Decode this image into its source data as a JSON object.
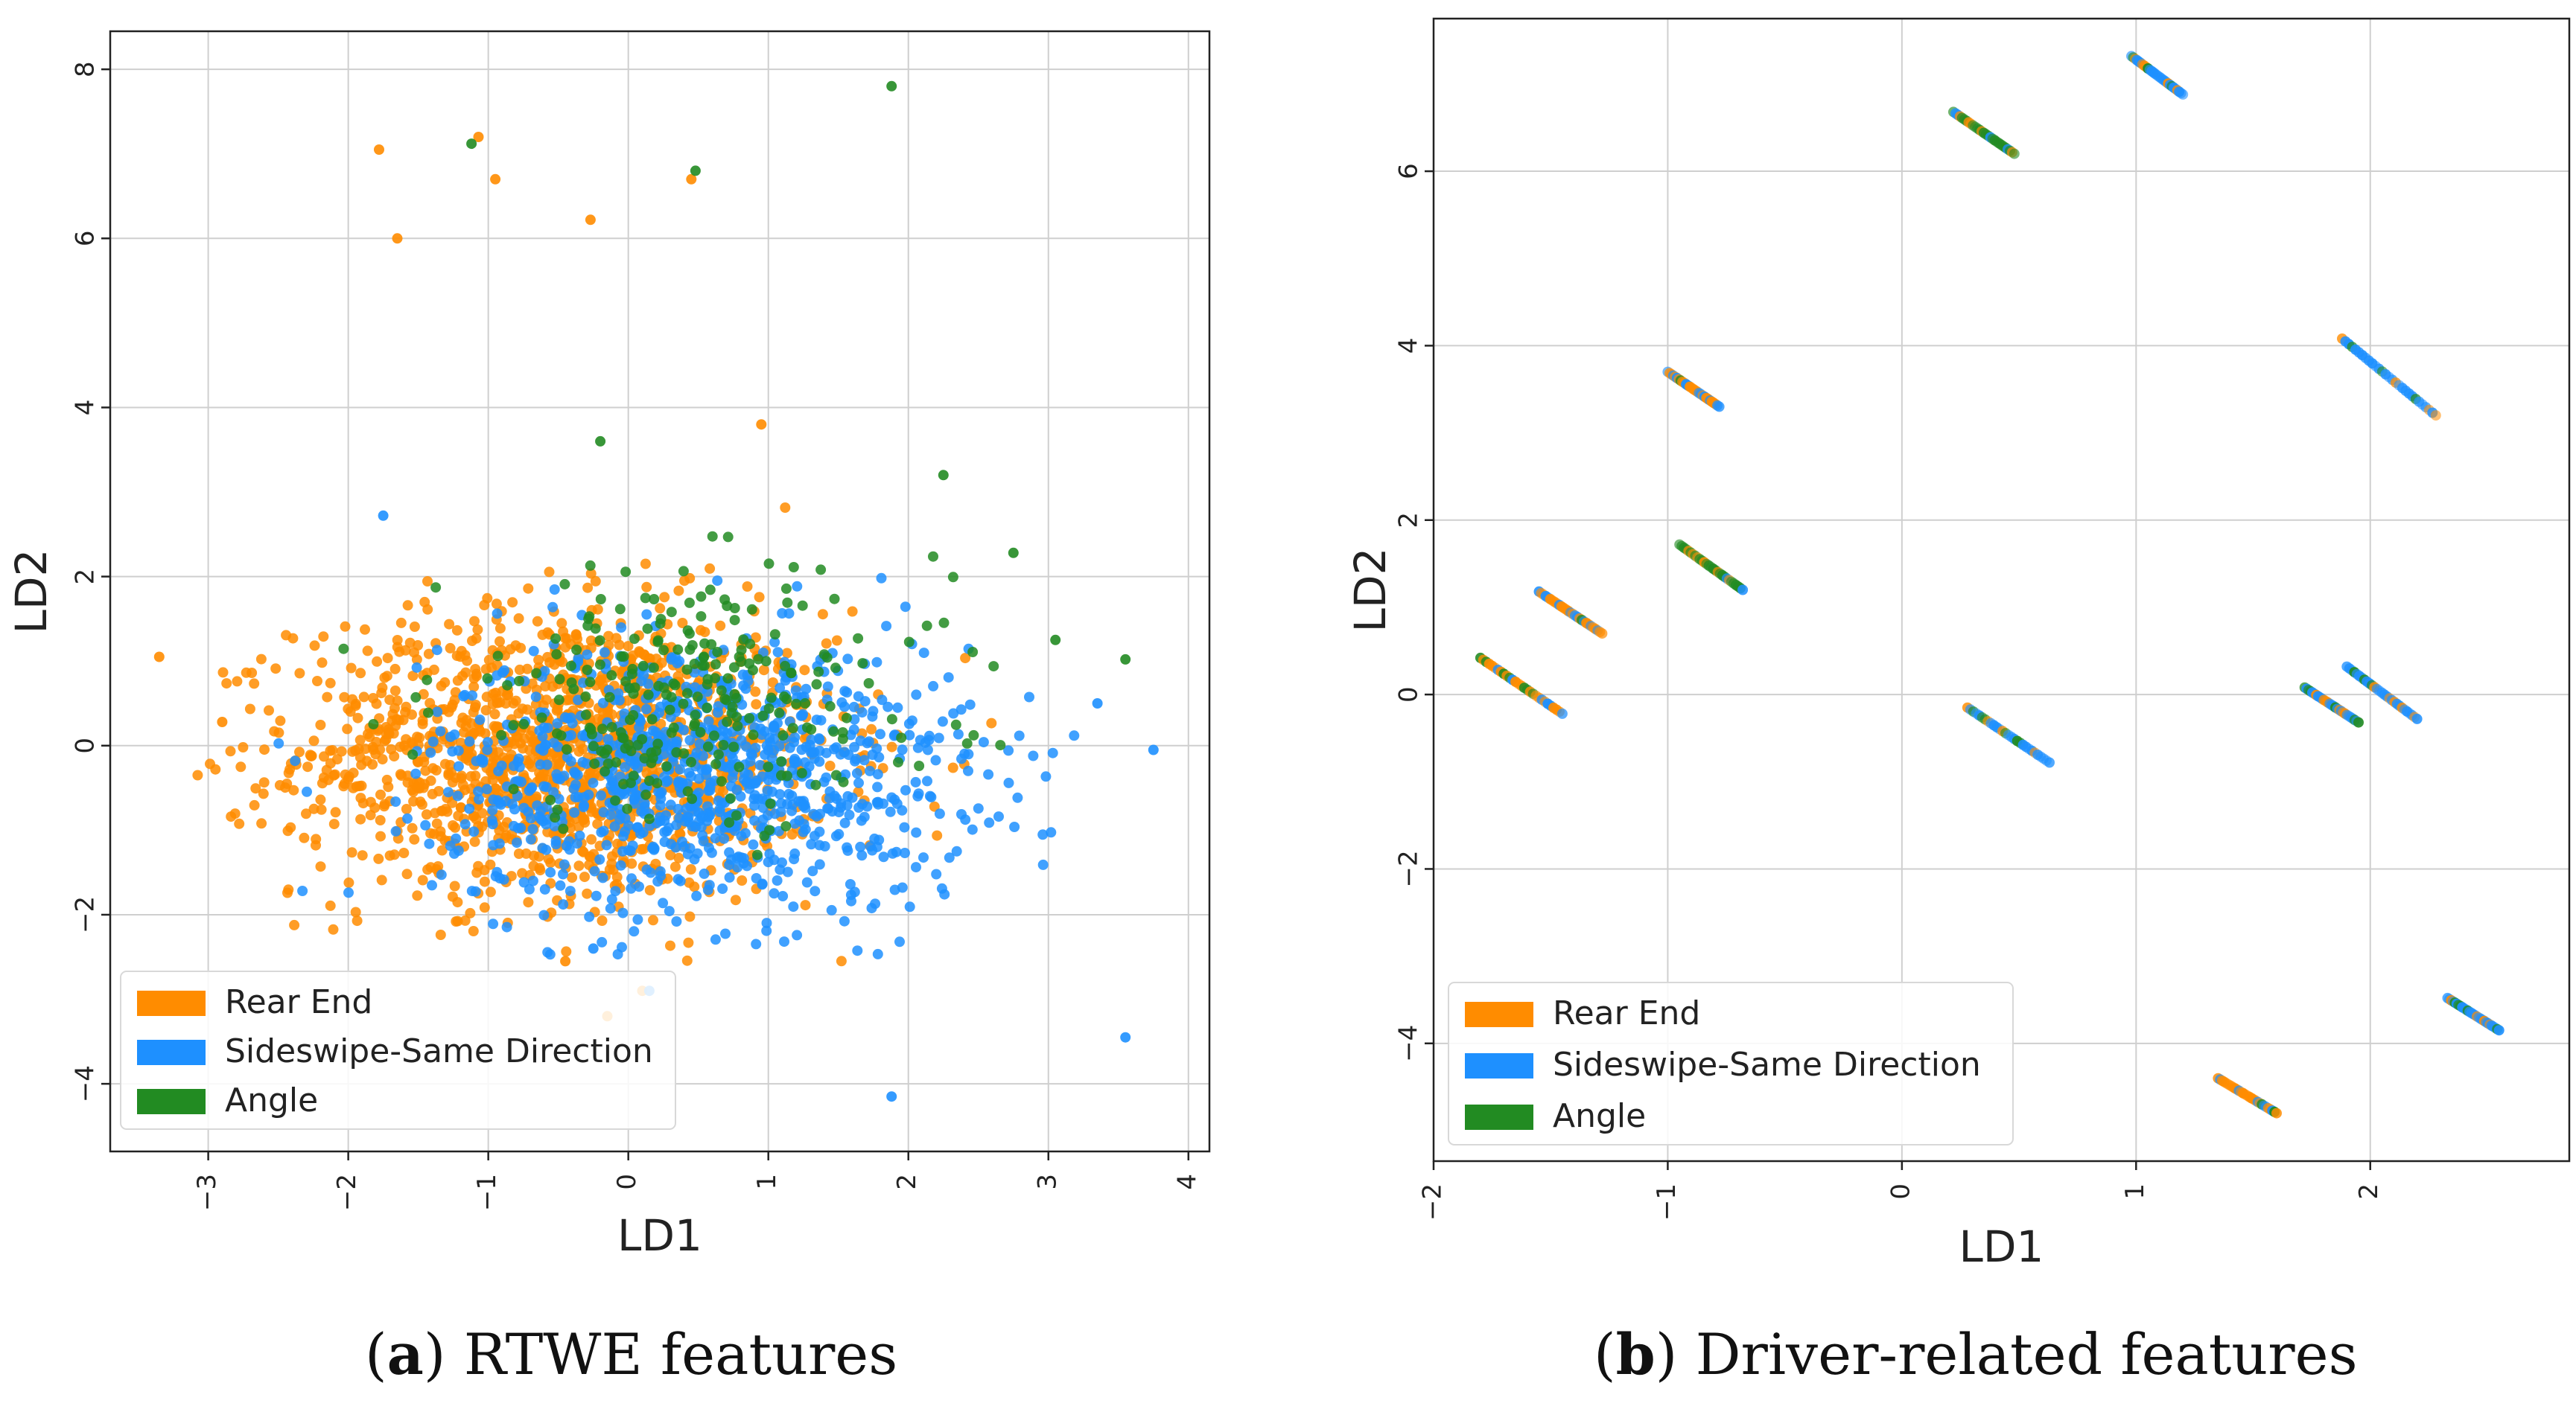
{
  "figure": {
    "panels": [
      {
        "id": "a",
        "caption_letter": "a",
        "caption_open": "(",
        "caption_close": ")",
        "caption_text": " RTWE features"
      },
      {
        "id": "b",
        "caption_letter": "b",
        "caption_open": "(",
        "caption_close": ")",
        "caption_text": " Driver-related features"
      }
    ]
  },
  "chart_data": [
    {
      "type": "scatter",
      "title": "",
      "xlabel": "LD1",
      "ylabel": "LD2",
      "xlim": [
        -3.7,
        4.15
      ],
      "ylim": [
        -4.8,
        8.45
      ],
      "xticks": [
        -3,
        -2,
        -1,
        0,
        1,
        2,
        3,
        4
      ],
      "yticks": [
        -4,
        -2,
        0,
        2,
        4,
        6,
        8
      ],
      "grid": true,
      "legend_position": "lower-left",
      "legend": [
        "Rear End",
        "Sideswipe-Same Direction",
        "Angle"
      ],
      "colors": {
        "Rear End": "#ff8c00",
        "Sideswipe-Same Direction": "#1e90ff",
        "Angle": "#228b22"
      },
      "cloud": {
        "description_only_for_generator": false,
        "series": [
          {
            "name": "Rear End",
            "count": 1500,
            "mean": [
              -0.45,
              -0.1
            ],
            "sd": [
              0.95,
              0.85
            ]
          },
          {
            "name": "Sideswipe-Same Direction",
            "count": 1000,
            "mean": [
              0.55,
              -0.35
            ],
            "sd": [
              0.95,
              0.8
            ]
          },
          {
            "name": "Angle",
            "count": 260,
            "mean": [
              0.45,
              0.55
            ],
            "sd": [
              0.9,
              0.75
            ]
          }
        ]
      },
      "series": [
        {
          "name": "Rear End",
          "x": [
            -1.78,
            -1.07,
            -0.95,
            -0.27,
            0.45,
            -1.65,
            -3.35,
            -2.9,
            0.95,
            0.1,
            -0.45,
            -0.15
          ],
          "y": [
            7.05,
            7.2,
            6.7,
            6.22,
            6.7,
            6.0,
            1.05,
            0.28,
            3.8,
            -2.9,
            -2.55,
            -3.2
          ]
        },
        {
          "name": "Sideswipe-Same Direction",
          "x": [
            3.75,
            3.55,
            3.35,
            1.88,
            0.15,
            -0.25,
            -1.75
          ],
          "y": [
            -0.05,
            -3.45,
            0.5,
            -4.15,
            -2.9,
            -2.4,
            2.72
          ]
        },
        {
          "name": "Angle",
          "x": [
            1.88,
            -1.12,
            0.48,
            3.55,
            3.05,
            2.75,
            2.25,
            -0.2
          ],
          "y": [
            7.8,
            7.12,
            6.8,
            1.02,
            1.25,
            2.28,
            3.2,
            3.6
          ]
        }
      ]
    },
    {
      "type": "scatter",
      "title": "",
      "xlabel": "LD1",
      "ylabel": "LD2",
      "xlim": [
        -2.0,
        2.85
      ],
      "ylim": [
        -5.35,
        7.75
      ],
      "xticks": [
        -2,
        -1,
        0,
        1,
        2
      ],
      "yticks": [
        -4,
        -2,
        0,
        2,
        4,
        6
      ],
      "grid": true,
      "legend_position": "lower-left",
      "legend": [
        "Rear End",
        "Sideswipe-Same Direction",
        "Angle"
      ],
      "colors": {
        "Rear End": "#ff8c00",
        "Sideswipe-Same Direction": "#1e90ff",
        "Angle": "#228b22"
      },
      "segments": [
        {
          "name": "Rear End",
          "from": [
            -1.8,
            0.42
          ],
          "to": [
            -1.45,
            -0.22
          ]
        },
        {
          "name": "Rear End",
          "from": [
            -1.55,
            1.18
          ],
          "to": [
            -1.28,
            0.7
          ]
        },
        {
          "name": "Rear End",
          "from": [
            -1.0,
            3.7
          ],
          "to": [
            -0.78,
            3.3
          ]
        },
        {
          "name": "Angle",
          "from": [
            -0.95,
            1.72
          ],
          "to": [
            -0.68,
            1.2
          ]
        },
        {
          "name": "Sideswipe-Same Direction",
          "from": [
            0.28,
            -0.15
          ],
          "to": [
            0.63,
            -0.78
          ]
        },
        {
          "name": "Angle",
          "from": [
            0.22,
            6.68
          ],
          "to": [
            0.48,
            6.2
          ]
        },
        {
          "name": "Sideswipe-Same Direction",
          "from": [
            0.98,
            7.32
          ],
          "to": [
            1.2,
            6.88
          ]
        },
        {
          "name": "Sideswipe-Same Direction",
          "from": [
            1.88,
            4.08
          ],
          "to": [
            2.28,
            3.2
          ]
        },
        {
          "name": "Sideswipe-Same Direction",
          "from": [
            1.72,
            0.08
          ],
          "to": [
            1.95,
            -0.32
          ]
        },
        {
          "name": "Sideswipe-Same Direction",
          "from": [
            1.9,
            0.32
          ],
          "to": [
            2.2,
            -0.28
          ]
        },
        {
          "name": "Sideswipe-Same Direction",
          "from": [
            2.33,
            -3.48
          ],
          "to": [
            2.55,
            -3.85
          ]
        },
        {
          "name": "Rear End",
          "from": [
            1.35,
            -4.4
          ],
          "to": [
            1.6,
            -4.8
          ]
        }
      ]
    }
  ]
}
